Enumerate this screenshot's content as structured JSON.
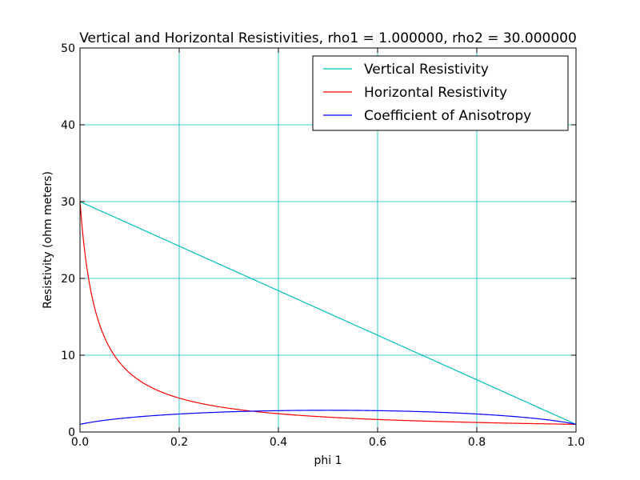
{
  "chart_data": {
    "type": "line",
    "title": "Vertical and Horizontal Resistivities, rho1 = 1.000000, rho2 = 30.000000",
    "xlabel": "phi 1",
    "ylabel": "Resistivity (ohm meters)",
    "xlim": [
      0,
      1
    ],
    "ylim": [
      0,
      50
    ],
    "xticks": [
      "0.0",
      "0.2",
      "0.4",
      "0.6",
      "0.8",
      "1.0"
    ],
    "yticks": [
      "0",
      "10",
      "20",
      "30",
      "40",
      "50"
    ],
    "grid": true,
    "legend_position": "top-right",
    "rho1": 1,
    "rho2": 30,
    "series": [
      {
        "name": "Vertical Resistivity",
        "color": "#00bfbf",
        "formula": "rho1*phi + rho2*(1-phi)"
      },
      {
        "name": "Horizontal Resistivity",
        "color": "#ff0000",
        "formula": "1/(phi/rho1 + (1-phi)/rho2)"
      },
      {
        "name": "Coefficient of Anisotropy",
        "color": "#0000ff",
        "formula": "sqrt(vertical/horizontal)"
      }
    ]
  }
}
